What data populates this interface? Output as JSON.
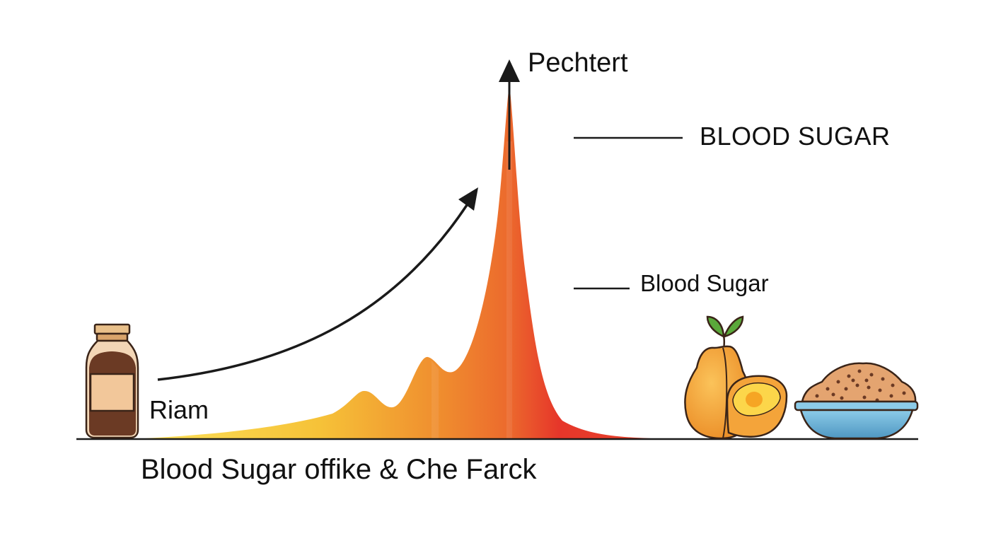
{
  "labels": {
    "peak": "Pechtert",
    "blood_sugar_upper": "BLOOD SUGAR",
    "blood_sugar_lower": "Blood Sugar",
    "start": "Riam",
    "caption": "Blood Sugar offike & Che Farck"
  },
  "colors": {
    "curve_start": "#f6c238",
    "curve_mid": "#ef7a2e",
    "curve_end": "#e6362a",
    "ink": "#1a1a1a",
    "bowl": "#6fb3d6",
    "fruit": "#f4a43a",
    "leaf": "#5aa83a"
  },
  "icons": {
    "left": "spice-jar-icon",
    "right_fruit": "pear-fruit-icon",
    "right_bowl": "grain-bowl-icon"
  }
}
